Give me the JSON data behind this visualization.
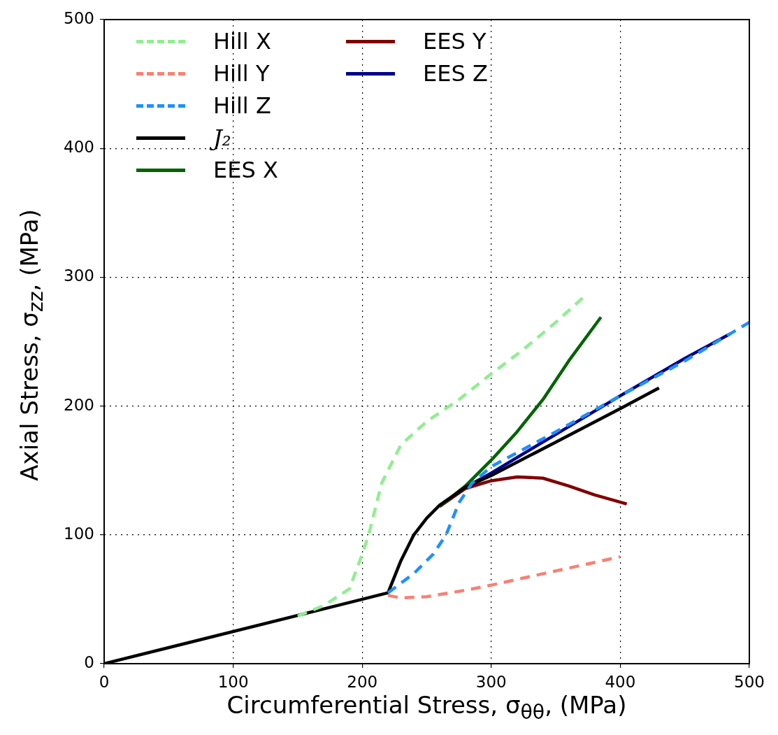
{
  "chart_data": {
    "type": "line",
    "xlabel": "Circumferential Stress, σ$_{θθ}$, (MPa)",
    "ylabel": "Axial Stress, σ$_{zz}$, (MPa)",
    "xlim": [
      0,
      500
    ],
    "ylim": [
      0,
      500
    ],
    "xticks": [
      0,
      100,
      200,
      300,
      400,
      500
    ],
    "yticks": [
      0,
      100,
      200,
      300,
      400,
      500
    ],
    "grid": true,
    "legend": "top left",
    "marker": "none",
    "series": [
      {
        "name": "Hill X",
        "color": "#90ee90",
        "line_style": "dashed",
        "x": [
          150,
          170,
          190,
          200,
          205,
          215,
          230,
          250,
          275,
          300,
          325,
          350,
          372
        ],
        "values": [
          37,
          45,
          58,
          85,
          100,
          140,
          170,
          188,
          205,
          225,
          244,
          265,
          285
        ]
      },
      {
        "name": "Hill Y",
        "color": "#fa8072",
        "line_style": "dashed",
        "x": [
          220,
          230,
          250,
          280,
          300,
          350,
          400
        ],
        "values": [
          53,
          51,
          52,
          57,
          61,
          72,
          83
        ]
      },
      {
        "name": "Hill Z",
        "color": "#1e90ff",
        "line_style": "dashed",
        "x": [
          220,
          240,
          255,
          265,
          275,
          285,
          300,
          350,
          400,
          450,
          500
        ],
        "values": [
          55,
          70,
          85,
          100,
          125,
          140,
          153,
          180,
          208,
          235,
          265
        ]
      },
      {
        "name": "J₂",
        "color": "#000000",
        "line_style": "solid",
        "x": [
          0,
          220,
          230,
          240,
          250,
          260,
          280,
          300,
          350,
          400,
          430
        ],
        "values": [
          0,
          55,
          80,
          100,
          113,
          123,
          137,
          146,
          172,
          198,
          214
        ]
      },
      {
        "name": "EES X",
        "color": "#006400",
        "line_style": "solid",
        "x": [
          260,
          280,
          300,
          320,
          340,
          360,
          385
        ],
        "values": [
          122,
          138,
          158,
          180,
          205,
          235,
          269
        ]
      },
      {
        "name": "EES Y",
        "color": "#800000",
        "line_style": "solid",
        "x": [
          260,
          280,
          300,
          320,
          340,
          360,
          380,
          405
        ],
        "values": [
          122,
          136,
          142,
          145,
          144,
          138,
          131,
          124
        ]
      },
      {
        "name": "EES Z",
        "color": "#00008b",
        "line_style": "solid",
        "x": [
          280,
          300,
          350,
          400,
          450,
          485
        ],
        "values": [
          137,
          148,
          178,
          208,
          237,
          256
        ]
      }
    ]
  }
}
